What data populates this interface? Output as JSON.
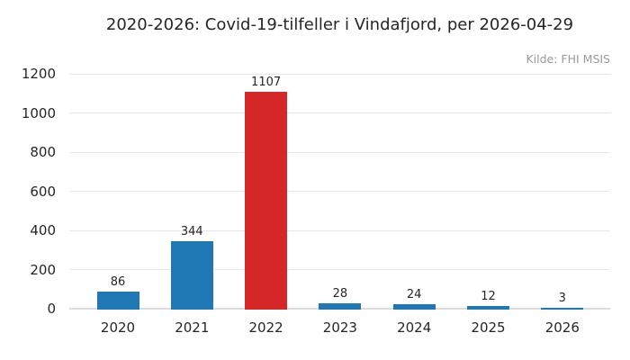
{
  "chart_data": {
    "type": "bar",
    "title": "2020-2026: Covid-19-tilfeller i Vindafjord, per 2026-04-29",
    "source": "Kilde: FHI MSIS",
    "categories": [
      "2020",
      "2021",
      "2022",
      "2023",
      "2024",
      "2025",
      "2026"
    ],
    "values": [
      86,
      344,
      1107,
      28,
      24,
      12,
      3
    ],
    "bar_colors": [
      "#1f77b4",
      "#1f77b4",
      "#d62728",
      "#1f77b4",
      "#1f77b4",
      "#1f77b4",
      "#1f77b4"
    ],
    "default_bar_color": "#1f77b4",
    "highlight_bar_color": "#d62728",
    "highlighted_category": "2022",
    "y_ticks": [
      0,
      200,
      400,
      600,
      800,
      1000,
      1200
    ],
    "ylim": [
      0,
      1200
    ],
    "xlabel": "",
    "ylabel": "",
    "grid": "horizontal",
    "gridline_color": "#e7e7e7",
    "axis_line_color": "#dcdcdc",
    "text_color": "#262626",
    "source_text_color": "#999999",
    "legend_position": "none",
    "value_labels_shown": true
  }
}
